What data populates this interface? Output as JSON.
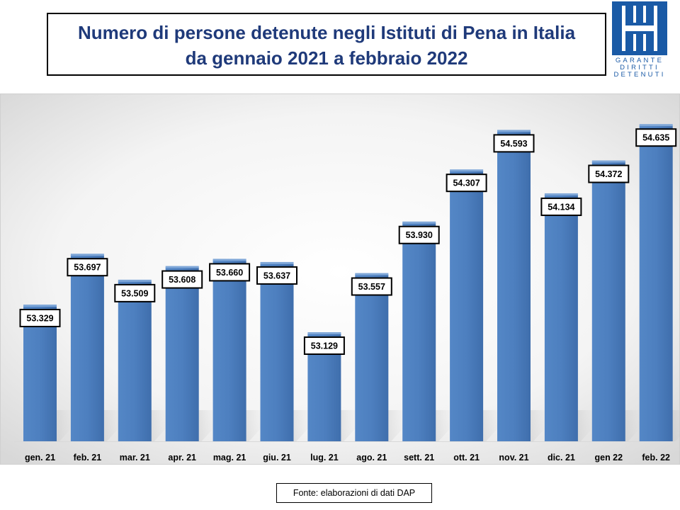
{
  "title": {
    "line1": "Numero di persone detenute negli Istituti di Pena in Italia",
    "line2": "da gennaio 2021 a febbraio 2022"
  },
  "logo": {
    "lines": [
      "GARANTE",
      "DIRITTI",
      "DETENUTI"
    ],
    "color": "#1a5aa6"
  },
  "source": "Fonte: elaborazioni di dati DAP",
  "chart_data": {
    "type": "bar",
    "categories": [
      "gen. 21",
      "feb. 21",
      "mar. 21",
      "apr. 21",
      "mag. 21",
      "giu. 21",
      "lug. 21",
      "ago. 21",
      "sett. 21",
      "ott. 21",
      "nov. 21",
      "dic. 21",
      "gen 22",
      "feb. 22"
    ],
    "values": [
      53329,
      53697,
      53509,
      53608,
      53660,
      53637,
      53129,
      53557,
      53930,
      54307,
      54593,
      54134,
      54372,
      54635
    ],
    "labels": [
      "53.329",
      "53.697",
      "53.509",
      "53.608",
      "53.660",
      "53.637",
      "53.129",
      "53.557",
      "53.930",
      "54.307",
      "54.593",
      "54.134",
      "54.372",
      "54.635"
    ],
    "title": "Numero di persone detenute negli Istituti di Pena in Italia da gennaio 2021 a febbraio 2022",
    "xlabel": "",
    "ylabel": "",
    "ylim": [
      52350,
      54800
    ],
    "grid": false,
    "legend": "none",
    "bar_color": "#4f7fbc"
  }
}
